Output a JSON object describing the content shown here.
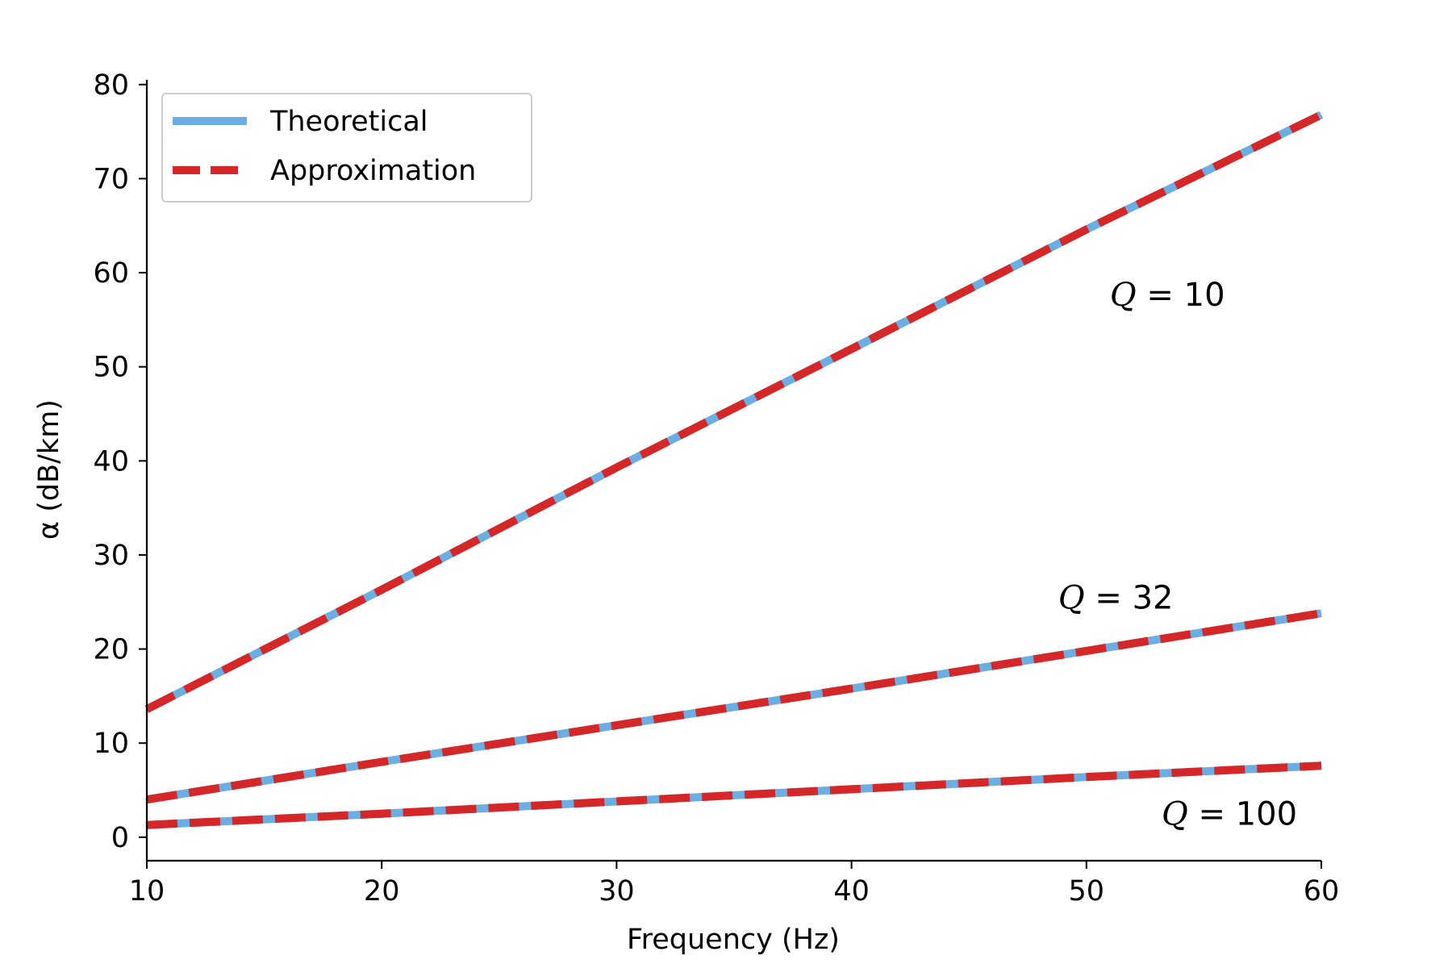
{
  "chart_data": {
    "type": "line",
    "title": "",
    "xlabel": "Frequency (Hz)",
    "ylabel": "α (dB/km)",
    "xlim": [
      10,
      60
    ],
    "ylim": [
      -2.5,
      80.5
    ],
    "xticks": [
      10,
      20,
      30,
      40,
      50,
      60
    ],
    "yticks": [
      0,
      10,
      20,
      30,
      40,
      50,
      60,
      70,
      80
    ],
    "grid": false,
    "legend": {
      "placement": "top-left",
      "entries": [
        {
          "label": "Theoretical",
          "color": "#6aaee3",
          "style": "solid"
        },
        {
          "label": "Approximation",
          "color": "#d62728",
          "style": "dashed"
        }
      ]
    },
    "x": [
      10,
      20,
      30,
      40,
      50,
      60
    ],
    "series": [
      {
        "Q": "10",
        "y": [
          13.6,
          26.3,
          39.3,
          51.9,
          64.6,
          76.8
        ]
      },
      {
        "Q": "32",
        "y": [
          4.0,
          8.0,
          11.9,
          15.8,
          19.8,
          23.8
        ]
      },
      {
        "Q": "100",
        "y": [
          1.3,
          2.5,
          3.8,
          5.1,
          6.4,
          7.6
        ]
      }
    ],
    "annotations": [
      {
        "text": "Q = 10",
        "x": 51,
        "y": 56.5
      },
      {
        "text": "Q = 32",
        "x": 48.8,
        "y": 24.3
      },
      {
        "text": "Q = 100",
        "x": 53.2,
        "y": 1.3
      }
    ]
  }
}
